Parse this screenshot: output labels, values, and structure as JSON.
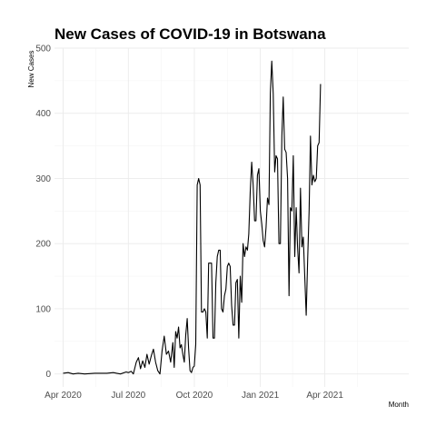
{
  "chart_data": {
    "type": "line",
    "title": "New Cases of COVID-19 in Botswana",
    "xlabel": "Month",
    "ylabel": "New Cases",
    "ylim": [
      -20,
      500
    ],
    "yticks": [
      0,
      100,
      200,
      300,
      400,
      500
    ],
    "xlim": [
      "2020-03-20",
      "2021-07-27"
    ],
    "xticks": [
      {
        "date": "2020-04-01",
        "label": "Apr 2020"
      },
      {
        "date": "2020-07-01",
        "label": "Jul 2020"
      },
      {
        "date": "2020-10-01",
        "label": "Oct 2020"
      },
      {
        "date": "2021-01-01",
        "label": "Jan 2021"
      },
      {
        "date": "2021-04-01",
        "label": "Apr 2021"
      }
    ],
    "grid": true,
    "series": [
      {
        "color": "#000000",
        "points": [
          [
            "2020-04-01",
            1
          ],
          [
            "2020-04-08",
            2
          ],
          [
            "2020-04-15",
            0
          ],
          [
            "2020-04-22",
            1
          ],
          [
            "2020-05-01",
            0
          ],
          [
            "2020-05-15",
            1
          ],
          [
            "2020-06-01",
            1
          ],
          [
            "2020-06-10",
            2
          ],
          [
            "2020-06-20",
            0
          ],
          [
            "2020-06-28",
            3
          ],
          [
            "2020-07-01",
            2
          ],
          [
            "2020-07-05",
            4
          ],
          [
            "2020-07-08",
            0
          ],
          [
            "2020-07-12",
            18
          ],
          [
            "2020-07-15",
            25
          ],
          [
            "2020-07-18",
            8
          ],
          [
            "2020-07-21",
            20
          ],
          [
            "2020-07-24",
            10
          ],
          [
            "2020-07-27",
            30
          ],
          [
            "2020-07-30",
            15
          ],
          [
            "2020-08-02",
            28
          ],
          [
            "2020-08-05",
            38
          ],
          [
            "2020-08-08",
            18
          ],
          [
            "2020-08-11",
            5
          ],
          [
            "2020-08-14",
            0
          ],
          [
            "2020-08-17",
            35
          ],
          [
            "2020-08-20",
            58
          ],
          [
            "2020-08-23",
            30
          ],
          [
            "2020-08-26",
            35
          ],
          [
            "2020-08-29",
            18
          ],
          [
            "2020-09-01",
            48
          ],
          [
            "2020-09-03",
            10
          ],
          [
            "2020-09-05",
            65
          ],
          [
            "2020-09-07",
            55
          ],
          [
            "2020-09-09",
            72
          ],
          [
            "2020-09-11",
            40
          ],
          [
            "2020-09-13",
            45
          ],
          [
            "2020-09-15",
            30
          ],
          [
            "2020-09-17",
            18
          ],
          [
            "2020-09-19",
            60
          ],
          [
            "2020-09-21",
            85
          ],
          [
            "2020-09-23",
            40
          ],
          [
            "2020-09-25",
            5
          ],
          [
            "2020-09-27",
            2
          ],
          [
            "2020-09-29",
            10
          ],
          [
            "2020-10-01",
            12
          ],
          [
            "2020-10-03",
            45
          ],
          [
            "2020-10-05",
            290
          ],
          [
            "2020-10-07",
            300
          ],
          [
            "2020-10-09",
            290
          ],
          [
            "2020-10-11",
            95
          ],
          [
            "2020-10-13",
            95
          ],
          [
            "2020-10-15",
            100
          ],
          [
            "2020-10-17",
            95
          ],
          [
            "2020-10-19",
            55
          ],
          [
            "2020-10-21",
            170
          ],
          [
            "2020-10-23",
            170
          ],
          [
            "2020-10-25",
            170
          ],
          [
            "2020-10-27",
            55
          ],
          [
            "2020-10-29",
            55
          ],
          [
            "2020-10-31",
            140
          ],
          [
            "2020-11-02",
            180
          ],
          [
            "2020-11-04",
            190
          ],
          [
            "2020-11-06",
            190
          ],
          [
            "2020-11-08",
            100
          ],
          [
            "2020-11-10",
            95
          ],
          [
            "2020-11-12",
            120
          ],
          [
            "2020-11-14",
            130
          ],
          [
            "2020-11-16",
            165
          ],
          [
            "2020-11-18",
            170
          ],
          [
            "2020-11-20",
            165
          ],
          [
            "2020-11-22",
            105
          ],
          [
            "2020-11-24",
            75
          ],
          [
            "2020-11-26",
            75
          ],
          [
            "2020-11-28",
            140
          ],
          [
            "2020-11-30",
            145
          ],
          [
            "2020-12-02",
            55
          ],
          [
            "2020-12-04",
            150
          ],
          [
            "2020-12-06",
            110
          ],
          [
            "2020-12-08",
            200
          ],
          [
            "2020-12-10",
            180
          ],
          [
            "2020-12-12",
            195
          ],
          [
            "2020-12-14",
            190
          ],
          [
            "2020-12-16",
            215
          ],
          [
            "2020-12-18",
            280
          ],
          [
            "2020-12-20",
            325
          ],
          [
            "2020-12-22",
            290
          ],
          [
            "2020-12-24",
            235
          ],
          [
            "2020-12-26",
            235
          ],
          [
            "2020-12-28",
            305
          ],
          [
            "2020-12-30",
            315
          ],
          [
            "2021-01-01",
            250
          ],
          [
            "2021-01-03",
            230
          ],
          [
            "2021-01-05",
            205
          ],
          [
            "2021-01-07",
            195
          ],
          [
            "2021-01-09",
            225
          ],
          [
            "2021-01-11",
            270
          ],
          [
            "2021-01-13",
            260
          ],
          [
            "2021-01-15",
            430
          ],
          [
            "2021-01-17",
            480
          ],
          [
            "2021-01-19",
            430
          ],
          [
            "2021-01-21",
            310
          ],
          [
            "2021-01-23",
            335
          ],
          [
            "2021-01-25",
            330
          ],
          [
            "2021-01-27",
            200
          ],
          [
            "2021-01-29",
            200
          ],
          [
            "2021-01-31",
            365
          ],
          [
            "2021-02-02",
            425
          ],
          [
            "2021-02-04",
            345
          ],
          [
            "2021-02-06",
            340
          ],
          [
            "2021-02-08",
            300
          ],
          [
            "2021-02-10",
            120
          ],
          [
            "2021-02-12",
            255
          ],
          [
            "2021-02-14",
            250
          ],
          [
            "2021-02-16",
            335
          ],
          [
            "2021-02-18",
            180
          ],
          [
            "2021-02-20",
            255
          ],
          [
            "2021-02-22",
            195
          ],
          [
            "2021-02-24",
            155
          ],
          [
            "2021-02-26",
            285
          ],
          [
            "2021-02-28",
            195
          ],
          [
            "2021-03-02",
            210
          ],
          [
            "2021-03-04",
            150
          ],
          [
            "2021-03-06",
            90
          ],
          [
            "2021-03-08",
            175
          ],
          [
            "2021-03-10",
            250
          ],
          [
            "2021-03-12",
            365
          ],
          [
            "2021-03-14",
            290
          ],
          [
            "2021-03-16",
            305
          ],
          [
            "2021-03-18",
            295
          ],
          [
            "2021-03-20",
            300
          ],
          [
            "2021-03-22",
            350
          ],
          [
            "2021-03-24",
            355
          ],
          [
            "2021-03-26",
            445
          ]
        ]
      }
    ]
  }
}
